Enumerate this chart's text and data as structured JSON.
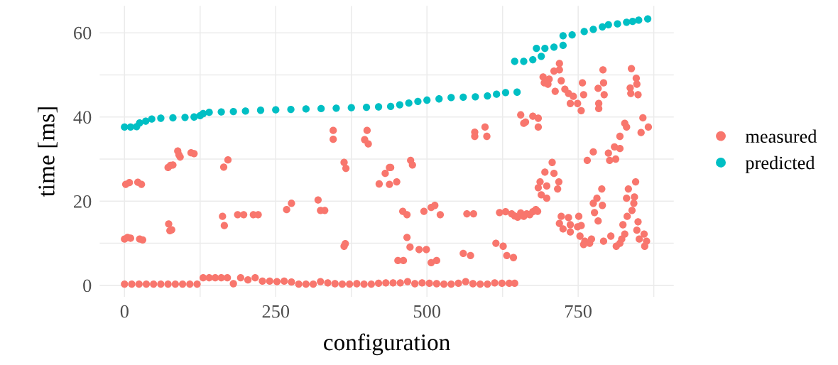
{
  "chart_data": {
    "type": "scatter",
    "xlabel": "configuration",
    "ylabel": "time [ms]",
    "xlim": [
      -41,
      908
    ],
    "ylim": [
      -2.7,
      66.4
    ],
    "xticks": [
      0,
      {
        "value": 125,
        "label": null
      },
      250,
      {
        "value": 375,
        "label": null
      },
      500,
      {
        "value": 625,
        "label": null
      },
      750,
      {
        "value": 875,
        "label": null
      }
    ],
    "yticks": [
      0,
      {
        "value": 10,
        "label": null
      },
      20,
      {
        "value": 30,
        "label": null
      },
      40,
      {
        "value": 50,
        "label": null
      },
      60
    ],
    "grid": true,
    "legend": "right",
    "marker": "circle",
    "series": [
      {
        "name": "measured",
        "color": "#f8766d",
        "x": [
          0,
          12,
          24,
          36,
          48,
          60,
          72,
          84,
          96,
          108,
          120,
          130,
          140,
          150,
          160,
          170,
          180,
          192,
          204,
          216,
          228,
          240,
          252,
          264,
          276,
          288,
          300,
          312,
          324,
          336,
          348,
          360,
          372,
          384,
          396,
          408,
          420,
          432,
          444,
          456,
          468,
          480,
          492,
          504,
          516,
          528,
          540,
          552,
          564,
          576,
          588,
          600,
          612,
          624,
          636,
          645,
          0,
          5,
          10,
          25,
          30,
          2,
          8,
          22,
          28,
          73,
          75,
          78,
          72,
          76,
          80,
          88,
          92,
          90,
          110,
          115,
          162,
          165,
          164,
          171,
          187,
          197,
          213,
          221,
          268,
          276,
          320,
          324,
          331,
          345,
          345,
          363,
          366,
          363,
          365,
          401,
          397,
          403,
          421,
          431,
          438,
          438,
          440,
          450,
          473,
          476,
          460,
          467,
          495,
          507,
          513,
          522,
          566,
          577,
          620,
          630,
          640,
          645,
          650,
          655,
          660,
          665,
          670,
          675,
          680,
          683,
          467,
          472,
          487,
          499,
          452,
          461,
          507,
          516,
          560,
          572,
          614,
          626,
          632,
          643,
          655,
          663,
          675,
          684,
          684,
          660,
          579,
          579,
          596,
          599,
          719,
          719,
          710,
          692,
          702,
          700,
          694,
          722,
          712,
          728,
          734,
          742,
          737,
          749,
          755,
          757,
          759,
          783,
          792,
          793,
          791,
          784,
          784,
          838,
          846,
          847,
          836,
          837,
          849,
          827,
          830,
          857,
          866,
          854,
          819,
          765,
          775,
          800,
          810,
          819,
          802,
          812,
          707,
          695,
          710,
          718,
          687,
          698,
          684,
          716,
          689,
          698,
          789,
          781,
          775,
          790,
          777,
          783,
          845,
          833,
          830,
          843,
          842,
          839,
          831,
          722,
          719,
          734,
          751,
          737,
          749,
          725,
          737,
          755,
          753,
          761,
          769,
          772,
          759,
          792,
          804,
          813,
          822,
          824,
          827,
          819,
          849,
          847,
          851,
          859,
          863,
          860
        ],
        "values": [
          0.3,
          0.3,
          0.3,
          0.3,
          0.3,
          0.3,
          0.3,
          0.3,
          0.3,
          0.3,
          0.3,
          1.8,
          1.8,
          1.8,
          1.8,
          1.8,
          0.4,
          1.8,
          1.3,
          1.8,
          1.0,
          1.0,
          0.9,
          1.0,
          0.8,
          0.3,
          0.3,
          0.3,
          0.9,
          0.6,
          0.4,
          0.3,
          0.3,
          0.4,
          0.3,
          0.3,
          0.5,
          0.6,
          0.6,
          0.6,
          0.9,
          0.4,
          0.6,
          0.5,
          0.4,
          0.3,
          0.3,
          0.5,
          0.9,
          0.4,
          0.3,
          0.3,
          0.6,
          0.5,
          0.5,
          0.5,
          11.0,
          11.4,
          11.2,
          11.0,
          10.8,
          24.0,
          24.4,
          24.5,
          24.0,
          14.6,
          13.0,
          13.2,
          28.0,
          28.5,
          28.6,
          31.9,
          30.5,
          31.0,
          31.5,
          31.3,
          16.4,
          14.2,
          28.1,
          29.8,
          16.8,
          16.8,
          16.8,
          16.8,
          18.0,
          19.5,
          20.3,
          17.8,
          17.8,
          36.8,
          34.7,
          29.2,
          27.8,
          9.3,
          9.9,
          36.8,
          34.6,
          33.6,
          24.1,
          26.6,
          28.0,
          24.0,
          28.0,
          24.6,
          29.7,
          28.6,
          17.6,
          16.8,
          17.6,
          18.5,
          19.0,
          16.8,
          17.0,
          17.0,
          17.3,
          17.5,
          17.0,
          16.5,
          16.2,
          17.2,
          16.4,
          17.0,
          16.8,
          17.5,
          18.0,
          17.6,
          11.4,
          9.1,
          8.5,
          8.5,
          5.9,
          5.9,
          5.4,
          5.9,
          7.6,
          7.1,
          10.0,
          9.3,
          7.1,
          6.6,
          40.5,
          38.8,
          40.2,
          39.7,
          37.6,
          38.5,
          36.4,
          35.4,
          37.6,
          35.4,
          52.7,
          51.2,
          50.9,
          49.5,
          49.0,
          47.8,
          48.1,
          48.6,
          46.1,
          46.6,
          45.6,
          44.9,
          43.2,
          43.2,
          41.5,
          48.1,
          45.3,
          46.8,
          48.1,
          45.3,
          51.2,
          43.2,
          42.0,
          51.5,
          49.2,
          47.8,
          46.9,
          45.6,
          45.3,
          38.5,
          37.6,
          39.8,
          37.6,
          36.3,
          35.4,
          29.7,
          31.7,
          31.4,
          32.9,
          32.5,
          29.7,
          30.0,
          29.2,
          26.9,
          26.6,
          24.6,
          24.6,
          23.6,
          23.2,
          22.9,
          21.5,
          20.7,
          22.9,
          20.7,
          19.5,
          19.0,
          17.3,
          15.3,
          24.6,
          22.9,
          20.7,
          21.0,
          19.5,
          17.8,
          16.4,
          16.4,
          14.7,
          16.1,
          16.4,
          14.4,
          13.9,
          13.4,
          12.7,
          14.2,
          11.7,
          10.5,
          10.0,
          11.0,
          9.7,
          10.5,
          11.7,
          9.3,
          11.0,
          14.4,
          12.2,
          10.0,
          15.1,
          13.1,
          11.0,
          12.2,
          10.5,
          9.3
        ]
      },
      {
        "name": "predicted",
        "color": "#00bfc4",
        "x": [
          0,
          10,
          20,
          25,
          35,
          45,
          60,
          80,
          100,
          115,
          125,
          130,
          140,
          160,
          180,
          200,
          225,
          250,
          275,
          300,
          325,
          350,
          375,
          400,
          420,
          440,
          455,
          470,
          485,
          500,
          520,
          540,
          560,
          580,
          600,
          615,
          630,
          649,
          645,
          660,
          675,
          689,
          681,
          695,
          710,
          725,
          725,
          740,
          760,
          775,
          790,
          800,
          815,
          830,
          840,
          850,
          865
        ],
        "values": [
          37.6,
          37.6,
          37.7,
          38.6,
          39.0,
          39.5,
          39.7,
          39.8,
          39.9,
          40.0,
          40.3,
          40.8,
          41.1,
          41.2,
          41.3,
          41.4,
          41.6,
          41.7,
          41.8,
          41.9,
          42.0,
          42.1,
          42.2,
          42.3,
          42.4,
          42.5,
          42.9,
          43.3,
          43.7,
          44.0,
          44.3,
          44.6,
          44.7,
          44.8,
          45.0,
          45.4,
          45.8,
          45.9,
          53.2,
          53.2,
          53.6,
          54.4,
          56.3,
          56.3,
          56.6,
          57.0,
          59.3,
          59.5,
          60.3,
          60.8,
          61.4,
          61.9,
          62.1,
          62.5,
          62.7,
          63.0,
          63.3
        ]
      }
    ]
  }
}
